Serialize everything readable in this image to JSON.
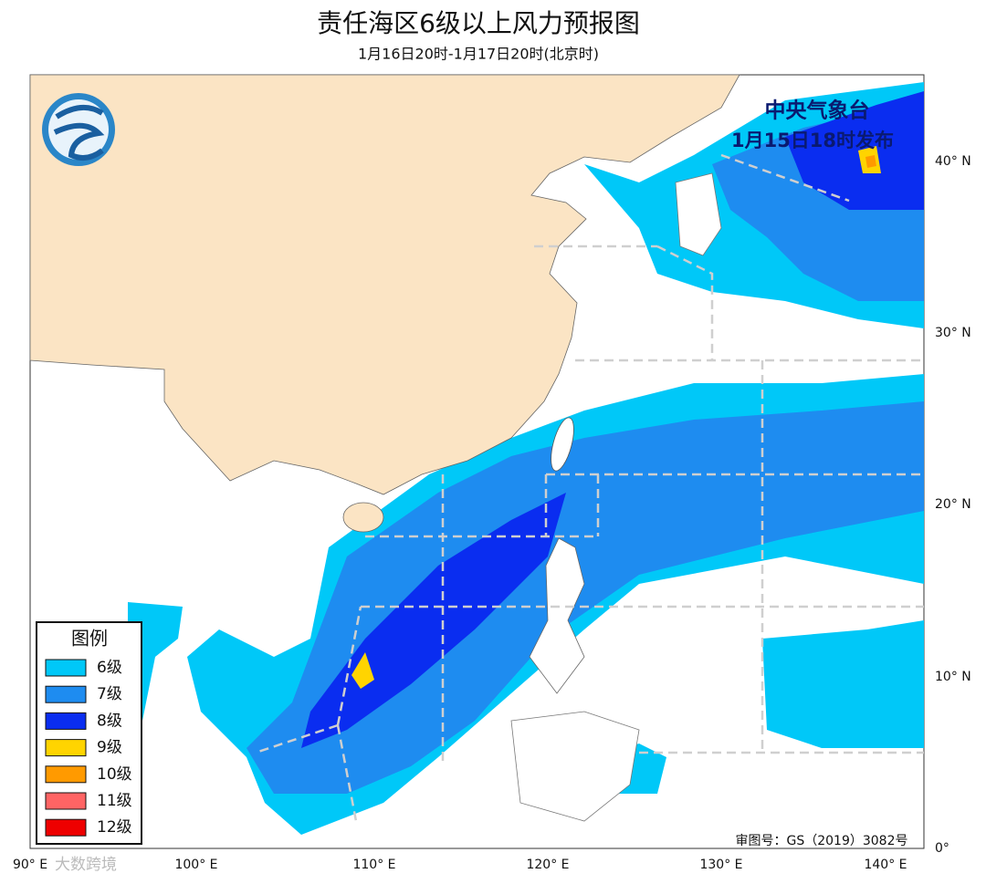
{
  "header": {
    "title": "责任海区6级以上风力预报图",
    "subtitle": "1月16日20时-1月17日20时(北京时)"
  },
  "issuer": {
    "agency": "中央气象台",
    "issued": "1月15日18时发布"
  },
  "legend": {
    "title": "图例",
    "items": [
      {
        "label": "6级",
        "color": "#00c8f8"
      },
      {
        "label": "7级",
        "color": "#1e8cf0"
      },
      {
        "label": "8级",
        "color": "#0a2df0"
      },
      {
        "label": "9级",
        "color": "#ffd400"
      },
      {
        "label": "10级",
        "color": "#ff9a00"
      },
      {
        "label": "11级",
        "color": "#ff6464"
      },
      {
        "label": "12级",
        "color": "#ee0000"
      }
    ]
  },
  "lat_labels": [
    "40° N",
    "30° N",
    "20° N",
    "10° N",
    "0°"
  ],
  "lon_labels": [
    "90° E",
    "100° E",
    "110° E",
    "120° E",
    "130° E",
    "140° E"
  ],
  "credit": "审图号：GS（2019）3082号",
  "watermark": "大数跨境"
}
